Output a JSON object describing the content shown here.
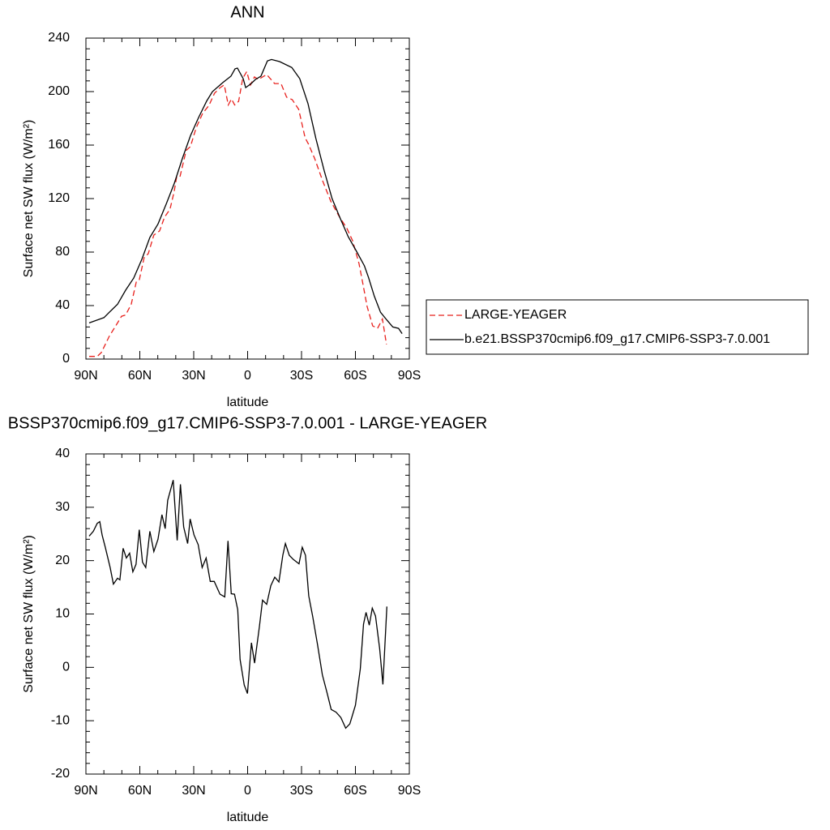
{
  "chart_data": [
    {
      "type": "line",
      "title": "ANN",
      "xlabel": "latitude",
      "ylabel": "Surface net SW flux (W/m²)",
      "xlim": [
        90,
        -90
      ],
      "xticks": [
        {
          "value": 90,
          "label": "90N"
        },
        {
          "value": 60,
          "label": "60N"
        },
        {
          "value": 30,
          "label": "30N"
        },
        0,
        {
          "value": -30,
          "label": "30S"
        },
        {
          "value": -60,
          "label": "60S"
        },
        {
          "value": -90,
          "label": "90S"
        }
      ],
      "ylim": [
        0,
        240
      ],
      "yticks": [
        0,
        40,
        80,
        120,
        160,
        200,
        240
      ],
      "legend": "right",
      "series": [
        {
          "name": "LARGE-YEAGER",
          "color": "#e8201c",
          "dashed": true,
          "x": [
            88.2,
            83.7,
            81.4,
            77,
            72.4,
            70.2,
            67.9,
            64.8,
            62,
            60.3,
            57.6,
            55.3,
            52.2,
            49,
            46.3,
            43.2,
            40.9,
            39.5,
            37.7,
            34.2,
            31.8,
            28.7,
            25.1,
            21.5,
            18.4,
            15.3,
            13,
            10.8,
            9,
            7.2,
            5,
            2.7,
            0.5,
            -1.6,
            -3.8,
            -6.1,
            -8.3,
            -10.6,
            -15,
            -18.6,
            -21.7,
            -24.8,
            -28.4,
            -32,
            -33.8,
            -37.3,
            -41.8,
            -46.3,
            -50.8,
            -55.3,
            -58.4,
            -62,
            -64.2,
            -66.5,
            -69.6,
            -72.3,
            -75,
            -77.3
          ],
          "values": [
            2,
            2,
            5,
            17,
            27,
            32,
            33,
            41,
            57.6,
            59,
            75.8,
            78.8,
            92.7,
            95.8,
            106,
            112,
            125,
            136,
            136,
            156,
            159,
            172.7,
            183.6,
            189.7,
            198.8,
            203,
            205,
            190,
            194.5,
            190,
            192.7,
            210,
            215,
            205,
            211,
            209,
            211,
            212.7,
            206,
            206,
            195.8,
            194,
            186.7,
            165.5,
            161,
            150,
            133,
            118,
            107,
            97.6,
            88.5,
            71.5,
            56,
            39.4,
            24.8,
            23,
            30,
            11
          ]
        },
        {
          "name": "b.e21.BSSP370cmip6.f09_g17.CMIP6-SSP3-7.0.001",
          "color": "#000000",
          "dashed": false,
          "x": [
            88.2,
            80,
            77,
            72.4,
            67.9,
            63.4,
            58.9,
            54.4,
            49.9,
            45.3,
            40.8,
            36.3,
            31.8,
            27.3,
            22.8,
            19.6,
            13.8,
            9.3,
            7,
            5.7,
            2.5,
            1.1,
            -2,
            -4.3,
            -7.4,
            -11,
            -13.3,
            -17.8,
            -24.6,
            -29,
            -33.6,
            -38,
            -42.6,
            -47,
            -51.6,
            -56,
            -60.6,
            -65,
            -67.3,
            -70.5,
            -74,
            -77.6,
            -80.8,
            -84,
            -86
          ],
          "values": [
            27,
            31,
            35,
            41,
            51.5,
            60.6,
            74.5,
            91,
            101,
            116,
            131.5,
            150,
            167,
            180.6,
            193,
            200,
            206.7,
            211.5,
            217,
            217.6,
            209.7,
            203,
            206,
            209,
            211.5,
            223,
            224,
            222.4,
            218,
            209.7,
            191,
            165,
            141,
            120,
            105,
            91.5,
            80.6,
            69.7,
            61,
            47,
            35,
            29,
            24,
            23,
            19
          ]
        }
      ]
    },
    {
      "type": "line",
      "title": "BSSP370cmip6.f09_g17.CMIP6-SSP3-7.0.001 - LARGE-YEAGER",
      "xlabel": "latitude",
      "ylabel": "Surface net SW flux (W/m²)",
      "xlim": [
        90,
        -90
      ],
      "xticks": [
        {
          "value": 90,
          "label": "90N"
        },
        {
          "value": 60,
          "label": "60N"
        },
        {
          "value": 30,
          "label": "30N"
        },
        0,
        {
          "value": -30,
          "label": "30S"
        },
        {
          "value": -60,
          "label": "60S"
        },
        {
          "value": -90,
          "label": "90S"
        }
      ],
      "ylim": [
        -20,
        40
      ],
      "yticks": [
        -20,
        -10,
        0,
        10,
        20,
        30,
        40
      ],
      "series": [
        {
          "color": "#000000",
          "dashed": false,
          "x": [
            88.2,
            85.9,
            83.7,
            82.3,
            81,
            79.2,
            76.5,
            74.7,
            72.4,
            71.1,
            69.3,
            67.5,
            65.7,
            63.9,
            62.1,
            60.3,
            58.5,
            56.7,
            54.4,
            52.2,
            49.9,
            47.7,
            45.9,
            44.5,
            41.4,
            39.2,
            37.4,
            35.6,
            33.4,
            32,
            29.8,
            27.5,
            25.3,
            23.1,
            20.8,
            18.6,
            15.4,
            12.7,
            10.9,
            9.1,
            7.3,
            5.5,
            4.2,
            1.9,
            0.1,
            -2.1,
            -3.9,
            -6.6,
            -8.3,
            -10.6,
            -12.9,
            -15.1,
            -17.4,
            -19.6,
            -21,
            -23.2,
            -25.5,
            -28.6,
            -30.4,
            -32.2,
            -34,
            -36.2,
            -38.9,
            -41.6,
            -44.3,
            -46.5,
            -49.2,
            -51.9,
            -54.6,
            -56.9,
            -60,
            -62.7,
            -64.5,
            -65.9,
            -67.7,
            -69.4,
            -71.2,
            -73.5,
            -75.3,
            -77.5
          ],
          "values": [
            24.6,
            25.5,
            27,
            27.3,
            24.8,
            22.5,
            18.7,
            15.6,
            16.7,
            16.4,
            22.3,
            20.5,
            21.4,
            17.9,
            19.3,
            25.8,
            19.7,
            18.7,
            25.5,
            21.7,
            24,
            28.6,
            26,
            31.3,
            35.1,
            23.8,
            34.3,
            26.3,
            23.2,
            27.8,
            24.8,
            23,
            18.7,
            20.5,
            16.1,
            16.1,
            13.7,
            13.2,
            23.7,
            13.8,
            13.7,
            10.8,
            1.5,
            -3.3,
            -4.9,
            4.6,
            0.8,
            7.7,
            12.6,
            11.8,
            15.3,
            16.9,
            16,
            21,
            23.2,
            21,
            20.2,
            19.4,
            22.5,
            21,
            13.4,
            9.6,
            4.3,
            -1.4,
            -4.9,
            -7.9,
            -8.4,
            -9.4,
            -11.4,
            -10.6,
            -7.1,
            -0.3,
            8.1,
            10.3,
            7.9,
            11.1,
            9.6,
            3.5,
            -3.2,
            11.4
          ]
        }
      ]
    }
  ]
}
